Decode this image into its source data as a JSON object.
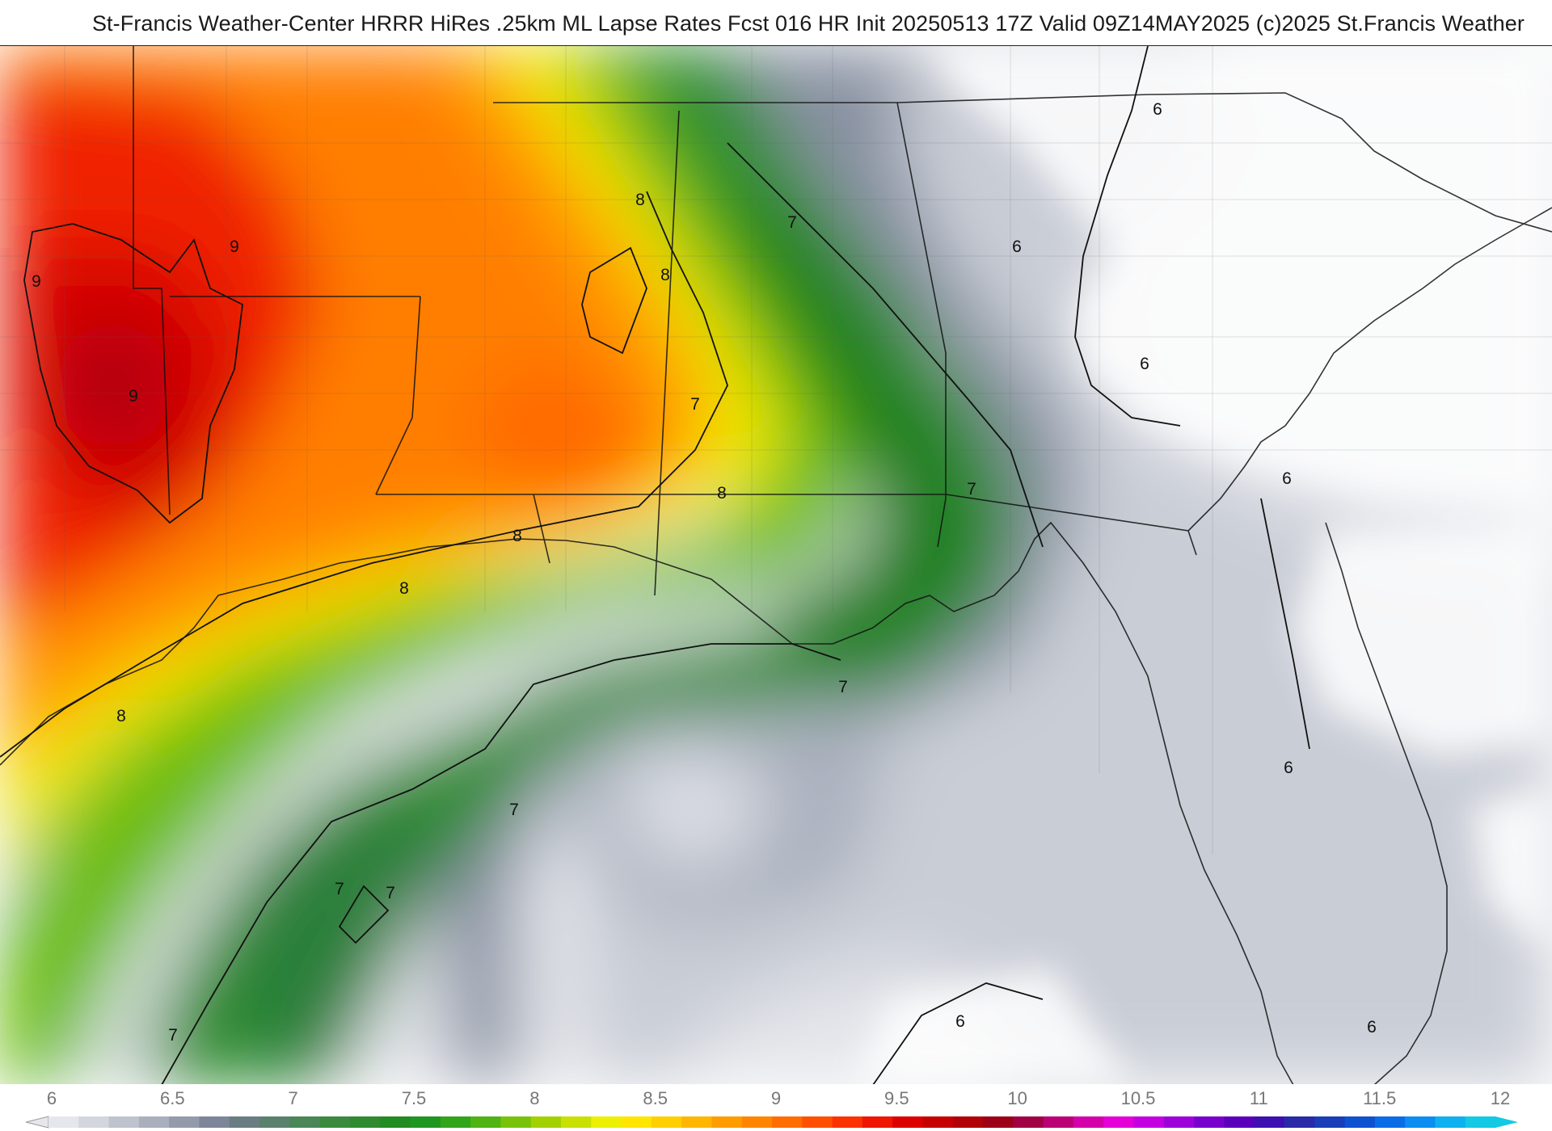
{
  "header": {
    "title": "St-Francis Weather-Center HRRR HiRes .25km ML Lapse Rates  Fcst 016 HR Init 20250513 17Z  Valid 09Z14MAY2025    (c)2025 St.Francis Weather"
  },
  "map": {
    "field": "ML Lapse Rates",
    "contour_labels": [
      "9",
      "9",
      "9",
      "8",
      "8",
      "8",
      "8",
      "8",
      "8",
      "7",
      "7",
      "7",
      "7",
      "7",
      "7",
      "7",
      "7",
      "6",
      "6",
      "6",
      "6",
      "6",
      "6",
      "6"
    ]
  },
  "colorbar": {
    "tick_labels": [
      "6",
      "6.5",
      "7",
      "7.5",
      "8",
      "8.5",
      "9",
      "9.5",
      "10",
      "10.5",
      "11",
      "11.5",
      "12"
    ],
    "colors": [
      "#e6e7ec",
      "#d3d6de",
      "#bec3ce",
      "#a9afbd",
      "#939bab",
      "#7d8699",
      "#6a7d82",
      "#5a816d",
      "#4b8656",
      "#3c8a3f",
      "#2f8a30",
      "#228b22",
      "#1f961f",
      "#31a41a",
      "#4fb313",
      "#78c30a",
      "#a3d100",
      "#c9e000",
      "#edf000",
      "#ffe600",
      "#ffcf00",
      "#ffb600",
      "#ff9d00",
      "#ff8500",
      "#ff6c00",
      "#ff5000",
      "#fb3200",
      "#ef1500",
      "#dd0000",
      "#c60000",
      "#b00008",
      "#9c0018",
      "#a10044",
      "#bb0075",
      "#d400aa",
      "#e400d6",
      "#c400e0",
      "#9d00d8",
      "#7800cc",
      "#5a00bb",
      "#3c11b0",
      "#2a2aa8",
      "#1a3db8",
      "#0f52d0",
      "#0a6de6",
      "#0b8ef0",
      "#0eb0ef",
      "#13c9e4"
    ]
  }
}
